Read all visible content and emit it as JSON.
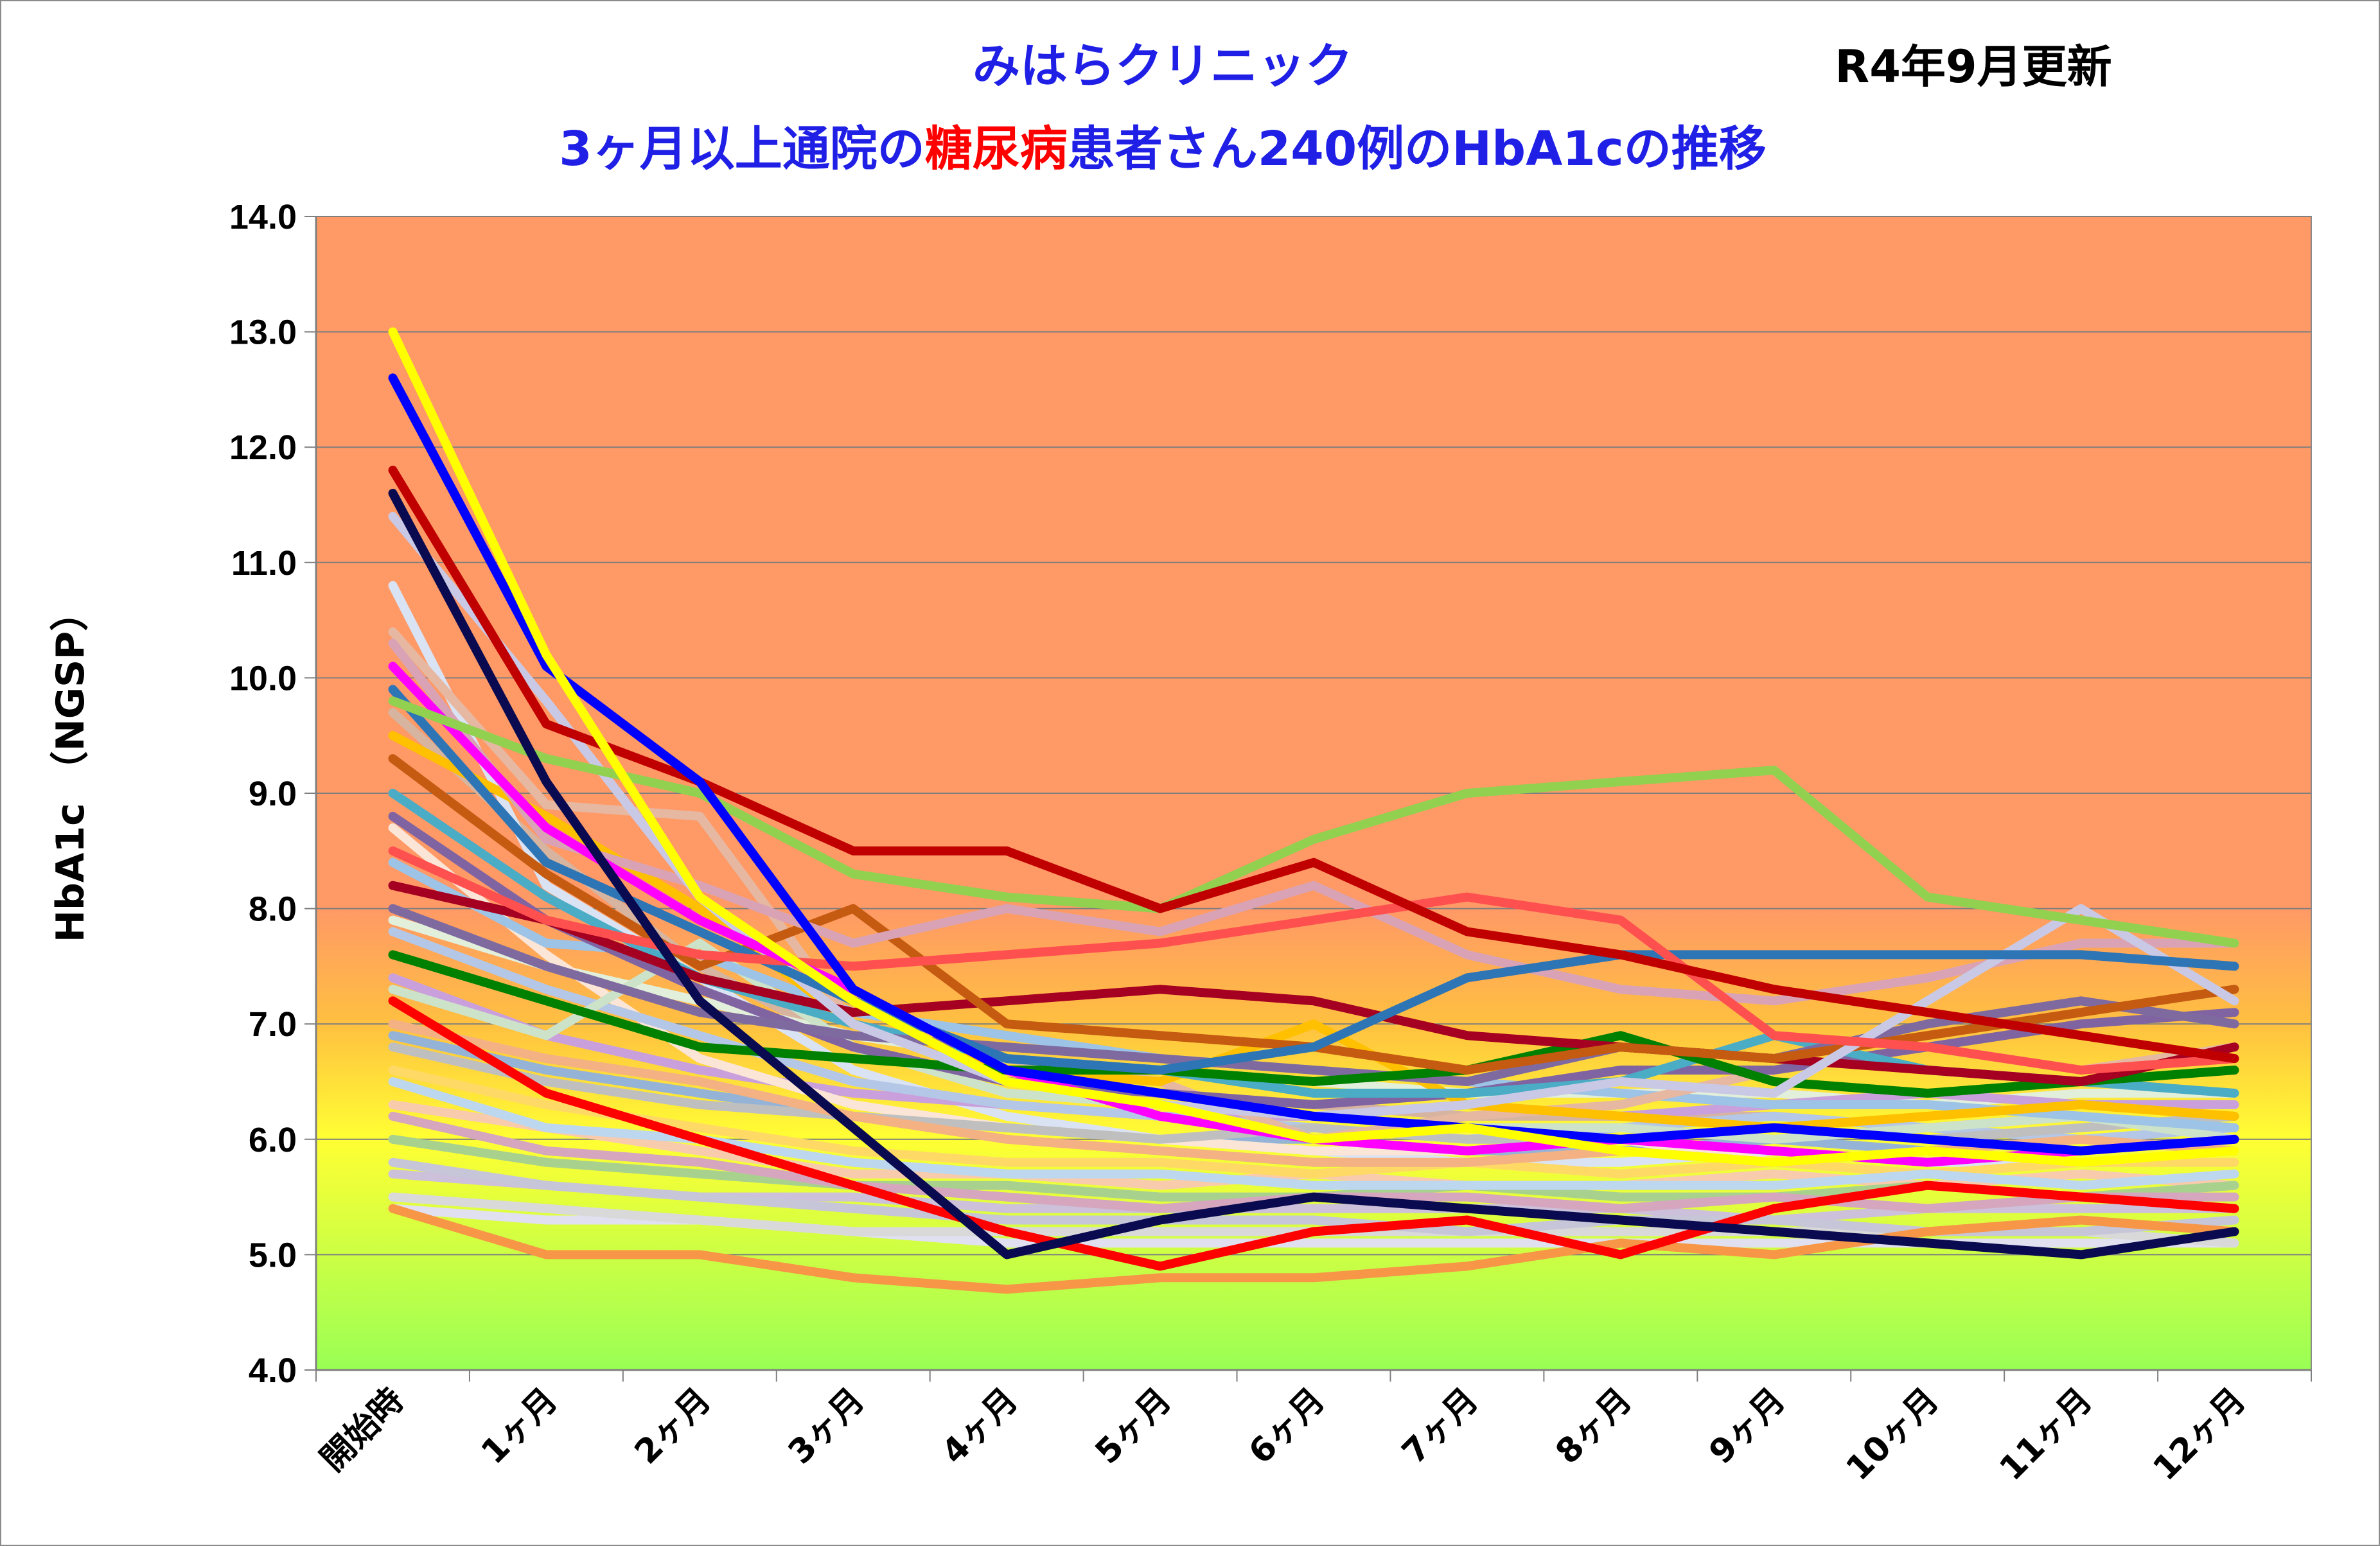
{
  "chart_data": {
    "type": "line",
    "title_line1": "みはらクリニック",
    "title_line2_parts": [
      {
        "text": "3ヶ月以上通院の",
        "emphasis": false
      },
      {
        "text": "糖尿病",
        "emphasis": true
      },
      {
        "text": "患者さん240例のHbA1cの推移",
        "emphasis": false
      }
    ],
    "update_note": "R4年9月更新",
    "ylabel": "HbA1c （NGSP）",
    "xlabel": "",
    "ylim": [
      4.0,
      14.0
    ],
    "ytick_labels": [
      "4.0",
      "5.0",
      "6.0",
      "7.0",
      "8.0",
      "9.0",
      "10.0",
      "11.0",
      "12.0",
      "13.0",
      "14.0"
    ],
    "categories": [
      "開始時",
      "1ヶ月",
      "2ヶ月",
      "3ヶ月",
      "4ヶ月",
      "5ヶ月",
      "6ヶ月",
      "7ヶ月",
      "8ヶ月",
      "9ヶ月",
      "10ヶ月",
      "11ヶ月",
      "12ヶ月"
    ],
    "background_bands": "gradient: orange above 8.0, orange-to-yellow 8.0–6.5, yellow-to-green below 6.5",
    "grid": "horizontal gridlines at each 1.0",
    "legend": "none",
    "series": [
      {
        "color": "#ffff00",
        "values": [
          13.0,
          10.2,
          8.1,
          7.2,
          6.5,
          6.3,
          6.0,
          6.1,
          5.9,
          5.8,
          5.9,
          5.8,
          5.9
        ]
      },
      {
        "color": "#0000ff",
        "values": [
          12.6,
          10.1,
          9.1,
          7.3,
          6.6,
          6.4,
          6.2,
          6.1,
          6.0,
          6.1,
          6.0,
          5.9,
          6.0
        ]
      },
      {
        "color": "#c00000",
        "values": [
          11.8,
          9.6,
          9.1,
          8.5,
          8.5,
          8.0,
          8.4,
          7.8,
          7.6,
          7.3,
          7.1,
          6.9,
          6.7
        ]
      },
      {
        "color": "#0a0a50",
        "values": [
          11.6,
          9.1,
          7.2,
          6.1,
          5.0,
          5.3,
          5.5,
          5.4,
          5.3,
          5.2,
          5.1,
          5.0,
          5.2
        ]
      },
      {
        "color": "#92d050",
        "values": [
          9.8,
          9.3,
          9.0,
          8.3,
          8.1,
          8.0,
          8.6,
          9.0,
          9.1,
          9.2,
          8.1,
          7.9,
          7.7
        ]
      },
      {
        "color": "#ff00ff",
        "values": [
          10.1,
          8.7,
          7.9,
          7.3,
          6.6,
          6.2,
          6.0,
          5.9,
          6.0,
          5.9,
          5.8,
          5.9,
          6.0
        ]
      },
      {
        "color": "#ff5050",
        "values": [
          8.5,
          7.9,
          7.6,
          7.5,
          7.6,
          7.7,
          7.9,
          8.1,
          7.9,
          6.9,
          6.8,
          6.6,
          6.7
        ]
      },
      {
        "color": "#2e75b6",
        "values": [
          9.9,
          8.4,
          7.8,
          7.2,
          6.7,
          6.6,
          6.8,
          7.4,
          7.6,
          7.6,
          7.6,
          7.6,
          7.5
        ]
      },
      {
        "color": "#c9c9e6",
        "values": [
          11.4,
          9.8,
          8.1,
          7.0,
          6.5,
          6.3,
          6.2,
          6.3,
          6.5,
          6.4,
          7.2,
          8.0,
          7.2
        ]
      },
      {
        "color": "#d9a3b5",
        "values": [
          10.3,
          8.6,
          8.2,
          7.7,
          8.0,
          7.8,
          8.2,
          7.6,
          7.3,
          7.2,
          7.4,
          7.7,
          7.7
        ]
      },
      {
        "color": "#c55a11",
        "values": [
          9.3,
          8.3,
          7.5,
          8.0,
          7.0,
          6.9,
          6.8,
          6.6,
          6.8,
          6.7,
          6.9,
          7.1,
          7.3
        ]
      },
      {
        "color": "#a50021",
        "values": [
          8.2,
          7.9,
          7.4,
          7.1,
          7.2,
          7.3,
          7.2,
          6.9,
          6.8,
          6.7,
          6.6,
          6.5,
          6.8
        ]
      },
      {
        "color": "#008000",
        "values": [
          7.6,
          7.2,
          6.8,
          6.7,
          6.6,
          6.6,
          6.5,
          6.6,
          6.9,
          6.5,
          6.4,
          6.5,
          6.6
        ]
      },
      {
        "color": "#7f6a9f",
        "values": [
          8.0,
          7.5,
          7.1,
          6.9,
          6.8,
          6.7,
          6.6,
          6.5,
          6.8,
          6.7,
          7.0,
          7.2,
          7.0
        ]
      },
      {
        "color": "#4bacc6",
        "values": [
          9.0,
          8.1,
          7.4,
          7.0,
          6.7,
          6.6,
          6.4,
          6.4,
          6.5,
          6.9,
          6.6,
          6.5,
          6.4
        ]
      },
      {
        "color": "#ffc000",
        "values": [
          9.5,
          8.8,
          8.0,
          7.0,
          6.6,
          6.5,
          7.0,
          6.3,
          6.2,
          6.1,
          6.2,
          6.3,
          6.2
        ]
      },
      {
        "color": "#8064a2",
        "values": [
          8.8,
          7.9,
          7.3,
          6.8,
          6.5,
          6.4,
          6.3,
          6.4,
          6.6,
          6.6,
          6.8,
          7.0,
          7.1
        ]
      },
      {
        "color": "#ff0000",
        "values": [
          7.2,
          6.4,
          6.0,
          5.6,
          5.2,
          4.9,
          5.2,
          5.3,
          5.0,
          5.4,
          5.6,
          5.5,
          5.4
        ]
      },
      {
        "color": "#f79646",
        "values": [
          5.4,
          5.0,
          5.0,
          4.8,
          4.7,
          4.8,
          4.8,
          4.9,
          5.1,
          5.0,
          5.2,
          5.3,
          5.2
        ]
      },
      {
        "color": "#e6b8a2",
        "values": [
          10.4,
          8.9,
          8.8,
          7.0,
          6.7,
          6.5,
          6.0,
          6.2,
          6.3,
          6.6,
          6.8,
          6.6,
          6.8
        ]
      },
      {
        "color": "#9dc3e6",
        "values": [
          8.4,
          7.7,
          7.6,
          7.1,
          6.9,
          6.7,
          6.6,
          6.5,
          6.4,
          6.3,
          6.3,
          6.2,
          6.1
        ]
      },
      {
        "color": "#cde3c9",
        "values": [
          7.3,
          6.9,
          7.7,
          6.8,
          6.4,
          6.3,
          6.0,
          6.1,
          6.1,
          6.0,
          6.1,
          6.2,
          6.0
        ]
      },
      {
        "color": "#f4b183",
        "values": [
          7.0,
          6.7,
          6.5,
          6.2,
          6.0,
          5.9,
          5.8,
          5.8,
          5.9,
          5.8,
          5.9,
          6.0,
          5.9
        ]
      },
      {
        "color": "#bdd7ee",
        "values": [
          6.5,
          6.1,
          6.0,
          5.8,
          5.7,
          5.7,
          5.6,
          5.6,
          5.6,
          5.6,
          5.7,
          5.6,
          5.7
        ]
      },
      {
        "color": "#d5a6bd",
        "values": [
          6.2,
          5.9,
          5.8,
          5.6,
          5.5,
          5.4,
          5.5,
          5.5,
          5.4,
          5.5,
          5.4,
          5.5,
          5.5
        ]
      },
      {
        "color": "#c6c6d8",
        "values": [
          5.8,
          5.6,
          5.5,
          5.4,
          5.3,
          5.3,
          5.3,
          5.2,
          5.3,
          5.3,
          5.2,
          5.2,
          5.3
        ]
      },
      {
        "color": "#d9d9d9",
        "values": [
          5.5,
          5.4,
          5.3,
          5.2,
          5.2,
          5.2,
          5.2,
          5.2,
          5.2,
          5.2,
          5.2,
          5.2,
          5.1
        ]
      },
      {
        "color": "#bfbfbf",
        "values": [
          6.8,
          6.5,
          6.3,
          6.2,
          6.1,
          6.0,
          6.1,
          6.0,
          6.0,
          6.1,
          6.0,
          6.1,
          6.2
        ]
      },
      {
        "color": "#b4c7e7",
        "values": [
          7.8,
          7.3,
          6.9,
          6.5,
          6.3,
          6.2,
          6.1,
          6.0,
          6.1,
          6.2,
          6.1,
          6.0,
          6.1
        ]
      },
      {
        "color": "#fbe5d6",
        "values": [
          8.7,
          7.6,
          6.7,
          6.3,
          6.1,
          6.0,
          5.9,
          5.9,
          6.0,
          5.8,
          5.9,
          6.0,
          5.9
        ]
      },
      {
        "color": "#a9d18e",
        "values": [
          6.0,
          5.8,
          5.7,
          5.6,
          5.6,
          5.5,
          5.5,
          5.6,
          5.5,
          5.5,
          5.6,
          5.5,
          5.6
        ]
      },
      {
        "color": "#ffd966",
        "values": [
          6.6,
          6.3,
          6.1,
          5.9,
          5.8,
          5.8,
          5.7,
          5.8,
          5.7,
          5.8,
          5.7,
          5.8,
          5.8
        ]
      },
      {
        "color": "#c9a0dc",
        "values": [
          7.4,
          6.9,
          6.6,
          6.4,
          6.3,
          6.2,
          6.2,
          6.3,
          6.2,
          6.3,
          6.4,
          6.3,
          6.3
        ]
      },
      {
        "color": "#f8cbad",
        "values": [
          6.3,
          6.1,
          5.9,
          5.7,
          5.7,
          5.6,
          5.7,
          5.6,
          5.6,
          5.7,
          5.6,
          5.7,
          5.6
        ]
      },
      {
        "color": "#dae3f3",
        "values": [
          10.8,
          8.2,
          7.4,
          6.6,
          6.2,
          6.0,
          5.9,
          5.8,
          5.8,
          5.9,
          5.8,
          5.8,
          5.9
        ]
      },
      {
        "color": "#e2efda",
        "values": [
          7.9,
          7.5,
          7.2,
          6.9,
          6.7,
          6.6,
          6.5,
          6.4,
          6.4,
          6.4,
          6.3,
          6.4,
          6.4
        ]
      },
      {
        "color": "#d6b4a0",
        "values": [
          9.7,
          8.5,
          7.5,
          6.8,
          6.5,
          6.4,
          6.3,
          6.2,
          6.2,
          6.2,
          6.1,
          6.2,
          6.1
        ]
      },
      {
        "color": "#95b3d7",
        "values": [
          6.9,
          6.6,
          6.4,
          6.2,
          6.1,
          6.0,
          6.0,
          5.9,
          5.9,
          6.0,
          5.9,
          6.0,
          5.9
        ]
      },
      {
        "color": "#ccc0da",
        "values": [
          5.7,
          5.6,
          5.5,
          5.5,
          5.4,
          5.4,
          5.4,
          5.4,
          5.4,
          5.3,
          5.4,
          5.4,
          5.4
        ]
      },
      {
        "color": "#e0e0f0",
        "values": [
          5.4,
          5.3,
          5.3,
          5.2,
          5.1,
          5.1,
          5.1,
          5.1,
          5.1,
          5.1,
          5.1,
          5.1,
          5.1
        ]
      }
    ]
  }
}
